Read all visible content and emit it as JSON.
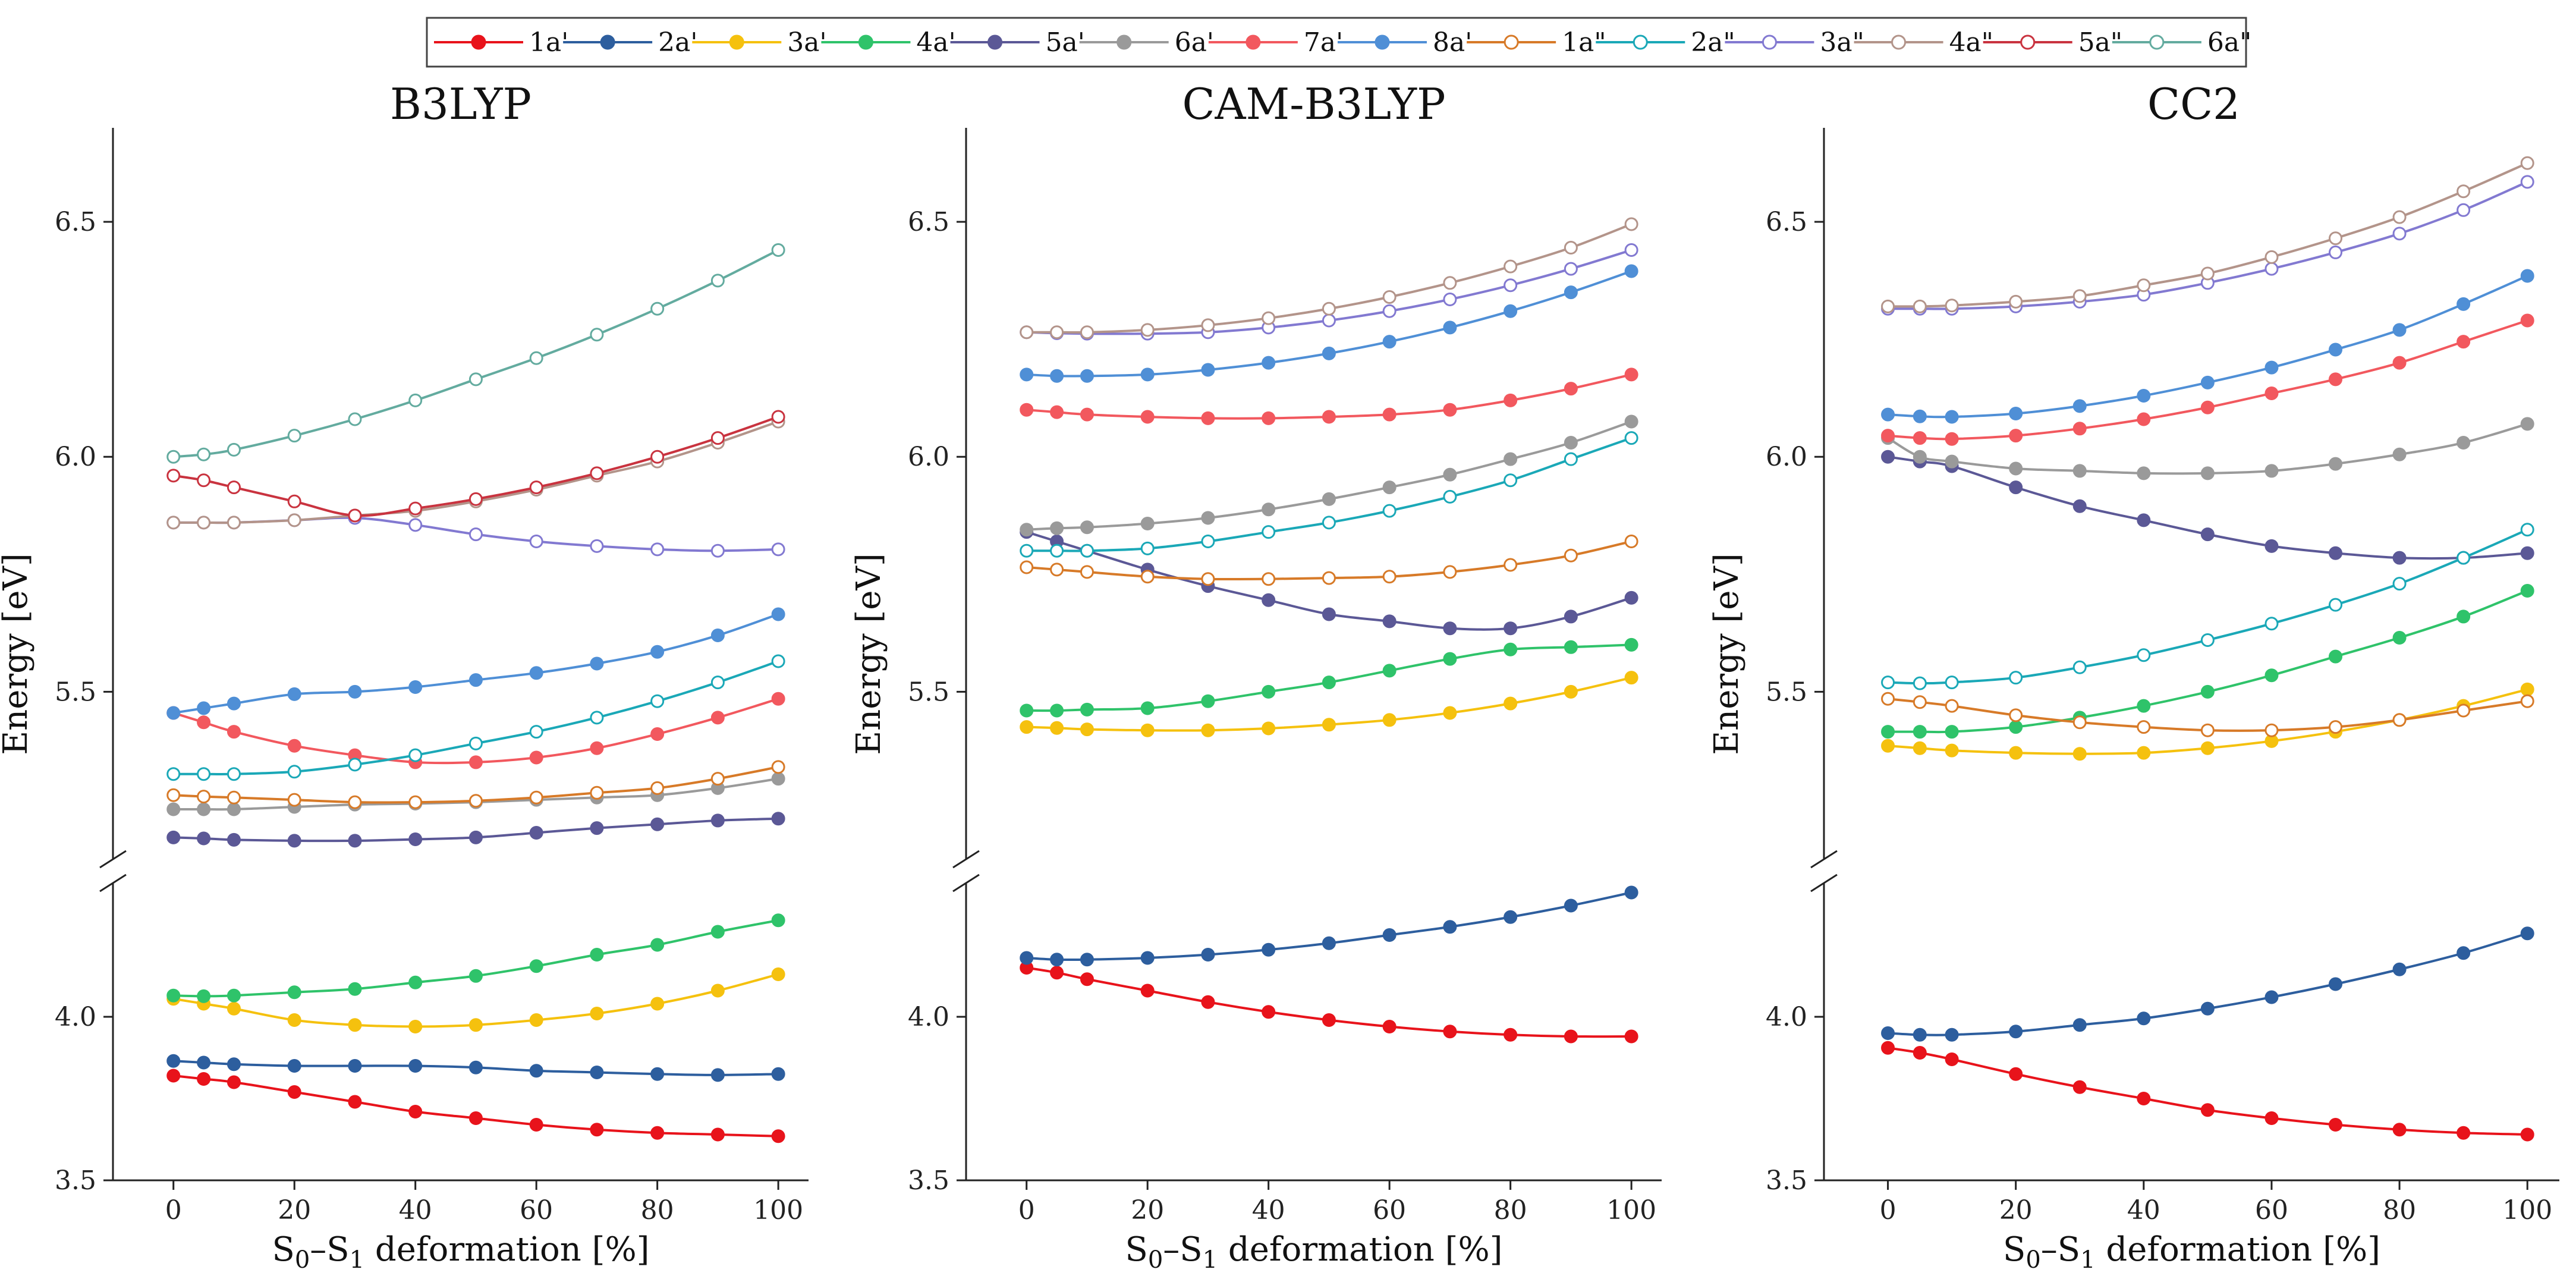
{
  "chart_data": {
    "type": "line",
    "legend_position": "top-center",
    "xlabel": "S0–S1 deformation [%]",
    "xlabel_parts": {
      "s": "S",
      "sub0": "0",
      "dash": "–S",
      "sub1": "1",
      "rest": " deformation [%]"
    },
    "ylabel": "Energy [eV]",
    "x": [
      0,
      5,
      10,
      20,
      30,
      40,
      50,
      60,
      70,
      80,
      90,
      100
    ],
    "xlim": [
      -10,
      105
    ],
    "xticks": [
      "0",
      "20",
      "40",
      "60",
      "80",
      "100"
    ],
    "ylim_upper": [
      5.15,
      6.7
    ],
    "ylim_lower": [
      3.5,
      4.4
    ],
    "yticks_upper": [
      "5.5",
      "6.0",
      "6.5"
    ],
    "yticks_lower": [
      "3.5",
      "4.0"
    ],
    "legend": [
      {
        "label": "1a'",
        "color": "#e8131b",
        "filled": true
      },
      {
        "label": "2a'",
        "color": "#2d5e9e",
        "filled": true
      },
      {
        "label": "3a'",
        "color": "#f5c10e",
        "filled": true
      },
      {
        "label": "4a'",
        "color": "#2fc36a",
        "filled": true
      },
      {
        "label": "5a'",
        "color": "#5b5896",
        "filled": true
      },
      {
        "label": "6a'",
        "color": "#9a9a9a",
        "filled": true
      },
      {
        "label": "7a'",
        "color": "#f2585e",
        "filled": true
      },
      {
        "label": "8a'",
        "color": "#4f8fd6",
        "filled": true
      },
      {
        "label": "1a\"",
        "color": "#d77a28",
        "filled": false
      },
      {
        "label": "2a\"",
        "color": "#1aa8b7",
        "filled": false
      },
      {
        "label": "3a\"",
        "color": "#8279d1",
        "filled": false
      },
      {
        "label": "4a\"",
        "color": "#b3948a",
        "filled": false
      },
      {
        "label": "5a\"",
        "color": "#c9333f",
        "filled": false
      },
      {
        "label": "6a\"",
        "color": "#63ab9f",
        "filled": false
      }
    ],
    "panels": [
      {
        "title": "B3LYP",
        "series": [
          {
            "name": "1a'",
            "values": [
              3.82,
              3.81,
              3.8,
              3.77,
              3.74,
              3.71,
              3.69,
              3.67,
              3.655,
              3.645,
              3.64,
              3.635
            ]
          },
          {
            "name": "2a'",
            "values": [
              3.865,
              3.86,
              3.855,
              3.85,
              3.85,
              3.85,
              3.845,
              3.835,
              3.83,
              3.825,
              3.822,
              3.825
            ]
          },
          {
            "name": "3a'",
            "values": [
              4.055,
              4.04,
              4.025,
              3.99,
              3.975,
              3.97,
              3.975,
              3.99,
              4.01,
              4.04,
              4.08,
              4.13
            ]
          },
          {
            "name": "4a'",
            "values": [
              4.065,
              4.063,
              4.065,
              4.075,
              4.085,
              4.105,
              4.125,
              4.155,
              4.19,
              4.22,
              4.26,
              4.295
            ]
          },
          {
            "name": "5a'",
            "values": [
              5.19,
              5.188,
              5.185,
              5.183,
              5.183,
              5.186,
              5.19,
              5.2,
              5.21,
              5.218,
              5.226,
              5.23
            ]
          },
          {
            "name": "6a'",
            "values": [
              5.25,
              5.25,
              5.25,
              5.255,
              5.26,
              5.262,
              5.265,
              5.27,
              5.275,
              5.28,
              5.295,
              5.315
            ]
          },
          {
            "name": "7a'",
            "values": [
              5.455,
              5.435,
              5.415,
              5.385,
              5.365,
              5.35,
              5.35,
              5.36,
              5.38,
              5.41,
              5.445,
              5.485
            ]
          },
          {
            "name": "8a'",
            "values": [
              5.455,
              5.465,
              5.475,
              5.495,
              5.5,
              5.51,
              5.525,
              5.54,
              5.56,
              5.585,
              5.62,
              5.665
            ]
          },
          {
            "name": "1a\"",
            "values": [
              5.28,
              5.277,
              5.275,
              5.27,
              5.265,
              5.265,
              5.268,
              5.275,
              5.285,
              5.295,
              5.315,
              5.34
            ]
          },
          {
            "name": "2a\"",
            "values": [
              5.325,
              5.325,
              5.325,
              5.33,
              5.345,
              5.365,
              5.39,
              5.415,
              5.445,
              5.48,
              5.52,
              5.565
            ]
          },
          {
            "name": "3a\"",
            "values": [
              5.86,
              5.86,
              5.86,
              5.865,
              5.87,
              5.855,
              5.835,
              5.82,
              5.81,
              5.803,
              5.8,
              5.803
            ]
          },
          {
            "name": "4a\"",
            "values": [
              5.86,
              5.86,
              5.86,
              5.865,
              5.875,
              5.885,
              5.905,
              5.93,
              5.96,
              5.99,
              6.03,
              6.075
            ]
          },
          {
            "name": "5a\"",
            "values": [
              5.96,
              5.95,
              5.935,
              5.905,
              5.875,
              5.89,
              5.91,
              5.935,
              5.965,
              6.0,
              6.04,
              6.085
            ]
          },
          {
            "name": "6a\"",
            "values": [
              6.0,
              6.005,
              6.015,
              6.045,
              6.08,
              6.12,
              6.165,
              6.21,
              6.26,
              6.315,
              6.375,
              6.44
            ]
          }
        ]
      },
      {
        "title": "CAM-B3LYP",
        "series": [
          {
            "name": "1a'",
            "values": [
              4.15,
              4.135,
              4.115,
              4.08,
              4.045,
              4.015,
              3.99,
              3.97,
              3.955,
              3.945,
              3.94,
              3.94
            ]
          },
          {
            "name": "2a'",
            "values": [
              4.18,
              4.175,
              4.175,
              4.18,
              4.19,
              4.205,
              4.225,
              4.25,
              4.275,
              4.305,
              4.34,
              4.38
            ]
          },
          {
            "name": "3a'",
            "values": [
              5.425,
              5.423,
              5.42,
              5.418,
              5.418,
              5.422,
              5.43,
              5.44,
              5.455,
              5.475,
              5.5,
              5.53
            ]
          },
          {
            "name": "4a'",
            "values": [
              5.46,
              5.46,
              5.462,
              5.465,
              5.48,
              5.5,
              5.52,
              5.545,
              5.57,
              5.59,
              5.595,
              5.6
            ]
          },
          {
            "name": "5a'",
            "values": [
              5.84,
              5.82,
              5.8,
              5.76,
              5.725,
              5.695,
              5.665,
              5.65,
              5.635,
              5.635,
              5.66,
              5.7
            ]
          },
          {
            "name": "6a'",
            "values": [
              5.845,
              5.848,
              5.85,
              5.858,
              5.87,
              5.888,
              5.91,
              5.935,
              5.962,
              5.995,
              6.03,
              6.075
            ]
          },
          {
            "name": "7a'",
            "values": [
              6.1,
              6.095,
              6.09,
              6.085,
              6.082,
              6.082,
              6.085,
              6.09,
              6.1,
              6.12,
              6.145,
              6.175
            ]
          },
          {
            "name": "8a'",
            "values": [
              6.175,
              6.172,
              6.172,
              6.175,
              6.185,
              6.2,
              6.22,
              6.245,
              6.275,
              6.31,
              6.35,
              6.395
            ]
          },
          {
            "name": "1a\"",
            "values": [
              5.765,
              5.76,
              5.755,
              5.745,
              5.74,
              5.74,
              5.742,
              5.745,
              5.755,
              5.77,
              5.79,
              5.82
            ]
          },
          {
            "name": "2a\"",
            "values": [
              5.8,
              5.8,
              5.8,
              5.805,
              5.82,
              5.84,
              5.86,
              5.885,
              5.915,
              5.95,
              5.995,
              6.04
            ]
          },
          {
            "name": "3a\"",
            "values": [
              6.265,
              6.263,
              6.262,
              6.262,
              6.265,
              6.275,
              6.29,
              6.31,
              6.335,
              6.365,
              6.4,
              6.44
            ]
          },
          {
            "name": "4a\"",
            "values": [
              6.265,
              6.265,
              6.265,
              6.27,
              6.28,
              6.295,
              6.315,
              6.34,
              6.37,
              6.405,
              6.445,
              6.495
            ]
          }
        ]
      },
      {
        "title": "CC2",
        "series": [
          {
            "name": "1a'",
            "values": [
              3.905,
              3.89,
              3.87,
              3.825,
              3.785,
              3.75,
              3.715,
              3.69,
              3.67,
              3.655,
              3.645,
              3.64
            ]
          },
          {
            "name": "2a'",
            "values": [
              3.95,
              3.945,
              3.945,
              3.955,
              3.975,
              3.995,
              4.025,
              4.06,
              4.1,
              4.145,
              4.195,
              4.255
            ]
          },
          {
            "name": "3a'",
            "values": [
              5.385,
              5.38,
              5.375,
              5.37,
              5.368,
              5.37,
              5.38,
              5.395,
              5.415,
              5.44,
              5.47,
              5.505
            ]
          },
          {
            "name": "4a'",
            "values": [
              5.415,
              5.415,
              5.415,
              5.425,
              5.445,
              5.47,
              5.5,
              5.535,
              5.575,
              5.615,
              5.66,
              5.715
            ]
          },
          {
            "name": "5a'",
            "values": [
              6.0,
              5.99,
              5.98,
              5.935,
              5.895,
              5.865,
              5.835,
              5.81,
              5.795,
              5.785,
              5.785,
              5.795
            ]
          },
          {
            "name": "6a'",
            "values": [
              6.04,
              6.0,
              5.99,
              5.975,
              5.97,
              5.965,
              5.965,
              5.97,
              5.985,
              6.005,
              6.03,
              6.07
            ]
          },
          {
            "name": "7a'",
            "values": [
              6.045,
              6.04,
              6.038,
              6.045,
              6.06,
              6.08,
              6.105,
              6.135,
              6.165,
              6.2,
              6.245,
              6.29
            ]
          },
          {
            "name": "8a'",
            "values": [
              6.09,
              6.086,
              6.085,
              6.092,
              6.108,
              6.13,
              6.158,
              6.19,
              6.228,
              6.27,
              6.325,
              6.385
            ]
          },
          {
            "name": "1a\"",
            "values": [
              5.485,
              5.478,
              5.47,
              5.45,
              5.435,
              5.425,
              5.418,
              5.418,
              5.425,
              5.44,
              5.46,
              5.48
            ]
          },
          {
            "name": "2a\"",
            "values": [
              5.52,
              5.518,
              5.52,
              5.53,
              5.552,
              5.578,
              5.61,
              5.645,
              5.685,
              5.73,
              5.785,
              5.845
            ]
          },
          {
            "name": "3a\"",
            "values": [
              6.315,
              6.315,
              6.315,
              6.32,
              6.33,
              6.345,
              6.37,
              6.4,
              6.435,
              6.475,
              6.525,
              6.585
            ]
          },
          {
            "name": "4a\"",
            "values": [
              6.32,
              6.32,
              6.322,
              6.33,
              6.342,
              6.365,
              6.39,
              6.425,
              6.465,
              6.51,
              6.565,
              6.625
            ]
          }
        ]
      }
    ]
  }
}
